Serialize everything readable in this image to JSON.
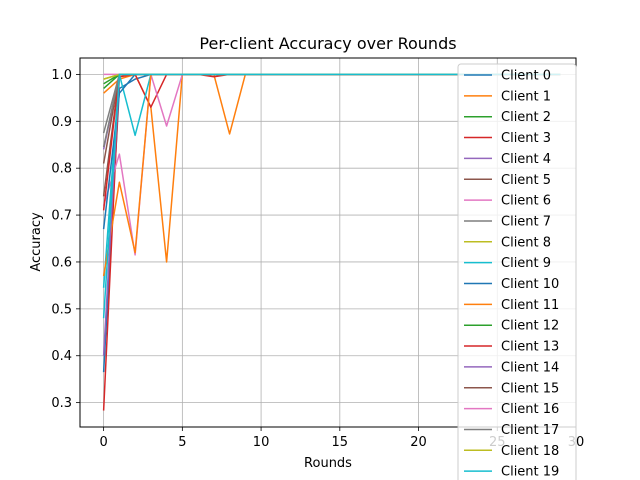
{
  "chart_data": {
    "type": "line",
    "title": "Per-client Accuracy over Rounds",
    "xlabel": "Rounds",
    "ylabel": "Accuracy",
    "xlim": [
      -1.5,
      30
    ],
    "ylim": [
      0.248,
      1.035
    ],
    "xticks": [
      0,
      5,
      10,
      15,
      20,
      25,
      30
    ],
    "yticks": [
      0.3,
      0.4,
      0.5,
      0.6,
      0.7,
      0.8,
      0.9,
      1.0
    ],
    "grid": true,
    "legend_position": "right",
    "x": [
      0,
      1,
      2,
      3,
      4,
      5,
      6,
      7,
      8,
      9,
      10,
      11,
      12,
      13,
      14,
      15,
      16,
      17,
      18,
      19,
      20,
      21,
      22,
      23,
      24,
      25,
      26,
      27,
      28,
      29
    ],
    "series": [
      {
        "name": "Client 0",
        "color": "#1f77b4",
        "values": [
          0.365,
          0.97,
          0.99,
          1.0,
          1.0,
          1.0,
          1.0,
          1.0,
          1.0,
          1.0,
          1.0,
          1.0,
          1.0,
          1.0,
          1.0,
          1.0,
          1.0,
          1.0,
          1.0,
          1.0,
          1.0,
          1.0,
          1.0,
          1.0,
          1.0,
          1.0,
          1.0,
          1.0,
          1.0,
          1.0
        ]
      },
      {
        "name": "Client 1",
        "color": "#ff7f0e",
        "values": [
          0.96,
          0.99,
          1.0,
          0.93,
          0.6,
          1.0,
          1.0,
          1.0,
          0.873,
          1.0,
          1.0,
          1.0,
          1.0,
          1.0,
          1.0,
          1.0,
          1.0,
          1.0,
          1.0,
          1.0,
          1.0,
          1.0,
          1.0,
          1.0,
          1.0,
          1.0,
          1.0,
          1.0,
          1.0,
          1.0
        ]
      },
      {
        "name": "Client 2",
        "color": "#2ca02c",
        "values": [
          0.98,
          1.0,
          1.0,
          1.0,
          1.0,
          1.0,
          1.0,
          1.0,
          1.0,
          1.0,
          1.0,
          1.0,
          1.0,
          1.0,
          1.0,
          1.0,
          1.0,
          1.0,
          1.0,
          1.0,
          1.0,
          1.0,
          1.0,
          1.0,
          1.0,
          1.0,
          1.0,
          1.0,
          1.0,
          1.0
        ]
      },
      {
        "name": "Client 3",
        "color": "#d62728",
        "values": [
          0.283,
          0.995,
          1.0,
          0.93,
          1.0,
          1.0,
          1.0,
          0.995,
          1.0,
          1.0,
          1.0,
          1.0,
          1.0,
          1.0,
          1.0,
          1.0,
          1.0,
          1.0,
          1.0,
          1.0,
          1.0,
          1.0,
          1.0,
          1.0,
          1.0,
          1.0,
          1.0,
          1.0,
          1.0,
          1.0
        ]
      },
      {
        "name": "Client 4",
        "color": "#9467bd",
        "values": [
          0.84,
          1.0,
          1.0,
          1.0,
          1.0,
          1.0,
          1.0,
          1.0,
          1.0,
          1.0,
          1.0,
          1.0,
          1.0,
          1.0,
          1.0,
          1.0,
          1.0,
          1.0,
          1.0,
          1.0,
          1.0,
          1.0,
          1.0,
          1.0,
          1.0,
          1.0,
          1.0,
          1.0,
          1.0,
          1.0
        ]
      },
      {
        "name": "Client 5",
        "color": "#8c564b",
        "values": [
          0.74,
          1.0,
          1.0,
          1.0,
          1.0,
          1.0,
          1.0,
          1.0,
          1.0,
          1.0,
          1.0,
          1.0,
          1.0,
          1.0,
          1.0,
          1.0,
          1.0,
          1.0,
          1.0,
          1.0,
          1.0,
          1.0,
          1.0,
          1.0,
          1.0,
          1.0,
          1.0,
          1.0,
          1.0,
          1.0
        ]
      },
      {
        "name": "Client 6",
        "color": "#e377c2",
        "values": [
          0.72,
          0.83,
          0.615,
          1.0,
          0.89,
          1.0,
          1.0,
          1.0,
          1.0,
          1.0,
          1.0,
          1.0,
          1.0,
          1.0,
          1.0,
          1.0,
          1.0,
          1.0,
          1.0,
          1.0,
          1.0,
          1.0,
          1.0,
          1.0,
          1.0,
          1.0,
          1.0,
          1.0,
          1.0,
          1.0
        ]
      },
      {
        "name": "Client 7",
        "color": "#7f7f7f",
        "values": [
          0.875,
          1.0,
          1.0,
          1.0,
          1.0,
          1.0,
          1.0,
          1.0,
          1.0,
          1.0,
          1.0,
          1.0,
          1.0,
          1.0,
          1.0,
          1.0,
          1.0,
          1.0,
          1.0,
          1.0,
          1.0,
          1.0,
          1.0,
          1.0,
          1.0,
          1.0,
          1.0,
          1.0,
          1.0,
          1.0
        ]
      },
      {
        "name": "Client 8",
        "color": "#bcbd22",
        "values": [
          0.99,
          1.0,
          1.0,
          1.0,
          1.0,
          1.0,
          1.0,
          1.0,
          1.0,
          1.0,
          1.0,
          1.0,
          1.0,
          1.0,
          1.0,
          1.0,
          1.0,
          1.0,
          1.0,
          1.0,
          1.0,
          1.0,
          1.0,
          1.0,
          1.0,
          1.0,
          1.0,
          1.0,
          1.0,
          1.0
        ]
      },
      {
        "name": "Client 9",
        "color": "#17becf",
        "values": [
          0.545,
          1.0,
          0.87,
          1.0,
          1.0,
          1.0,
          1.0,
          1.0,
          1.0,
          1.0,
          1.0,
          1.0,
          1.0,
          1.0,
          1.0,
          1.0,
          1.0,
          1.0,
          1.0,
          1.0,
          1.0,
          1.0,
          1.0,
          1.0,
          1.0,
          1.0,
          1.0,
          1.0,
          1.0,
          1.0
        ]
      },
      {
        "name": "Client 10",
        "color": "#1f77b4",
        "values": [
          0.67,
          0.96,
          1.0,
          1.0,
          1.0,
          1.0,
          1.0,
          1.0,
          1.0,
          1.0,
          1.0,
          1.0,
          1.0,
          1.0,
          1.0,
          1.0,
          1.0,
          1.0,
          1.0,
          1.0,
          1.0,
          1.0,
          1.0,
          1.0,
          1.0,
          1.0,
          1.0,
          1.0,
          1.0,
          1.0
        ]
      },
      {
        "name": "Client 11",
        "color": "#ff7f0e",
        "values": [
          0.57,
          0.77,
          0.62,
          1.0,
          1.0,
          1.0,
          1.0,
          1.0,
          1.0,
          1.0,
          1.0,
          1.0,
          1.0,
          1.0,
          1.0,
          1.0,
          1.0,
          1.0,
          1.0,
          1.0,
          1.0,
          1.0,
          1.0,
          1.0,
          1.0,
          1.0,
          1.0,
          1.0,
          1.0,
          1.0
        ]
      },
      {
        "name": "Client 12",
        "color": "#2ca02c",
        "values": [
          0.97,
          1.0,
          1.0,
          1.0,
          1.0,
          1.0,
          1.0,
          1.0,
          1.0,
          1.0,
          1.0,
          1.0,
          1.0,
          1.0,
          1.0,
          1.0,
          1.0,
          1.0,
          1.0,
          1.0,
          1.0,
          1.0,
          1.0,
          1.0,
          1.0,
          1.0,
          1.0,
          1.0,
          1.0,
          1.0
        ]
      },
      {
        "name": "Client 13",
        "color": "#d62728",
        "values": [
          0.71,
          1.0,
          1.0,
          1.0,
          1.0,
          1.0,
          1.0,
          1.0,
          1.0,
          1.0,
          1.0,
          1.0,
          1.0,
          1.0,
          1.0,
          1.0,
          1.0,
          1.0,
          1.0,
          1.0,
          1.0,
          1.0,
          1.0,
          1.0,
          1.0,
          1.0,
          1.0,
          1.0,
          1.0,
          1.0
        ]
      },
      {
        "name": "Client 14",
        "color": "#9467bd",
        "values": [
          0.4,
          1.0,
          1.0,
          1.0,
          1.0,
          1.0,
          1.0,
          1.0,
          1.0,
          1.0,
          1.0,
          1.0,
          1.0,
          1.0,
          1.0,
          1.0,
          1.0,
          1.0,
          1.0,
          1.0,
          1.0,
          1.0,
          1.0,
          1.0,
          1.0,
          1.0,
          1.0,
          1.0,
          1.0,
          1.0
        ]
      },
      {
        "name": "Client 15",
        "color": "#8c564b",
        "values": [
          0.81,
          1.0,
          1.0,
          1.0,
          1.0,
          1.0,
          1.0,
          1.0,
          1.0,
          1.0,
          1.0,
          1.0,
          1.0,
          1.0,
          1.0,
          1.0,
          1.0,
          1.0,
          1.0,
          1.0,
          1.0,
          1.0,
          1.0,
          1.0,
          1.0,
          1.0,
          1.0,
          1.0,
          1.0,
          1.0
        ]
      },
      {
        "name": "Client 16",
        "color": "#e377c2",
        "values": [
          1.0,
          1.0,
          1.0,
          1.0,
          1.0,
          1.0,
          1.0,
          1.0,
          1.0,
          1.0,
          1.0,
          1.0,
          1.0,
          1.0,
          1.0,
          1.0,
          1.0,
          1.0,
          1.0,
          1.0,
          1.0,
          1.0,
          1.0,
          1.0,
          1.0,
          1.0,
          1.0,
          1.0,
          1.0,
          1.0
        ]
      },
      {
        "name": "Client 17",
        "color": "#7f7f7f",
        "values": [
          0.845,
          1.0,
          1.0,
          1.0,
          1.0,
          1.0,
          1.0,
          1.0,
          1.0,
          1.0,
          1.0,
          1.0,
          1.0,
          1.0,
          1.0,
          1.0,
          1.0,
          1.0,
          1.0,
          1.0,
          1.0,
          1.0,
          1.0,
          1.0,
          1.0,
          1.0,
          1.0,
          1.0,
          1.0,
          1.0
        ]
      },
      {
        "name": "Client 18",
        "color": "#bcbd22",
        "values": [
          0.99,
          1.0,
          1.0,
          1.0,
          1.0,
          1.0,
          1.0,
          1.0,
          1.0,
          1.0,
          1.0,
          1.0,
          1.0,
          1.0,
          1.0,
          1.0,
          1.0,
          1.0,
          1.0,
          1.0,
          1.0,
          1.0,
          1.0,
          1.0,
          1.0,
          1.0,
          1.0,
          1.0,
          1.0,
          1.0
        ]
      },
      {
        "name": "Client 19",
        "color": "#17becf",
        "values": [
          0.48,
          1.0,
          1.0,
          1.0,
          1.0,
          1.0,
          1.0,
          1.0,
          1.0,
          1.0,
          1.0,
          1.0,
          1.0,
          1.0,
          1.0,
          1.0,
          1.0,
          1.0,
          1.0,
          1.0,
          1.0,
          1.0,
          1.0,
          1.0,
          1.0,
          1.0,
          1.0,
          1.0,
          1.0,
          1.0
        ]
      }
    ]
  }
}
